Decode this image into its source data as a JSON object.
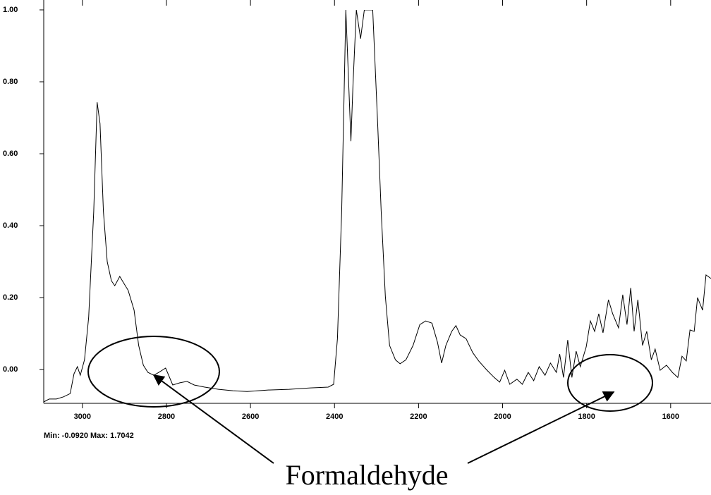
{
  "chart_data": {
    "type": "line",
    "x": [
      3092,
      3079,
      3062,
      3045,
      3029,
      3020,
      3012,
      3005,
      2995,
      2985,
      2973,
      2965,
      2958,
      2950,
      2941,
      2931,
      2923,
      2911,
      2903,
      2891,
      2877,
      2866,
      2855,
      2844,
      2830,
      2818,
      2802,
      2785,
      2768,
      2751,
      2734,
      2709,
      2676,
      2642,
      2608,
      2558,
      2508,
      2457,
      2415,
      2402,
      2393,
      2383,
      2373,
      2361,
      2356,
      2348,
      2338,
      2329,
      2309,
      2297,
      2289,
      2279,
      2269,
      2255,
      2244,
      2230,
      2213,
      2197,
      2183,
      2168,
      2155,
      2145,
      2135,
      2121,
      2111,
      2101,
      2087,
      2071,
      2057,
      2037,
      2020,
      2007,
      1995,
      1983,
      1966,
      1953,
      1939,
      1926,
      1913,
      1899,
      1886,
      1872,
      1864,
      1855,
      1845,
      1835,
      1825,
      1815,
      1801,
      1791,
      1781,
      1771,
      1761,
      1748,
      1738,
      1724,
      1714,
      1704,
      1695,
      1687,
      1678,
      1667,
      1657,
      1646,
      1637,
      1625,
      1610,
      1596,
      1583,
      1573,
      1563,
      1554,
      1544,
      1536,
      1524,
      1516,
      1504
    ],
    "values": [
      -0.09,
      -0.082,
      -0.082,
      -0.076,
      -0.067,
      -0.012,
      0.008,
      -0.016,
      0.027,
      0.145,
      0.44,
      0.743,
      0.684,
      0.44,
      0.3,
      0.247,
      0.233,
      0.259,
      0.243,
      0.22,
      0.165,
      0.067,
      0.012,
      -0.008,
      -0.016,
      -0.008,
      0.004,
      -0.043,
      -0.037,
      -0.033,
      -0.043,
      -0.049,
      -0.055,
      -0.059,
      -0.061,
      -0.057,
      -0.055,
      -0.051,
      -0.049,
      -0.041,
      0.086,
      0.44,
      1.0,
      0.635,
      0.79,
      1.0,
      0.92,
      1.0,
      1.0,
      0.675,
      0.44,
      0.204,
      0.067,
      0.027,
      0.016,
      0.027,
      0.067,
      0.125,
      0.135,
      0.129,
      0.076,
      0.018,
      0.067,
      0.106,
      0.122,
      0.096,
      0.086,
      0.047,
      0.024,
      -0.002,
      -0.022,
      -0.035,
      -0.002,
      -0.041,
      -0.027,
      -0.041,
      -0.008,
      -0.031,
      0.008,
      -0.016,
      0.018,
      -0.008,
      0.043,
      -0.022,
      0.082,
      -0.022,
      0.051,
      0.008,
      0.063,
      0.135,
      0.106,
      0.155,
      0.102,
      0.194,
      0.155,
      0.116,
      0.208,
      0.125,
      0.227,
      0.106,
      0.194,
      0.067,
      0.106,
      0.027,
      0.057,
      -0.002,
      0.012,
      -0.008,
      -0.022,
      0.037,
      0.024,
      0.11,
      0.106,
      0.2,
      0.165,
      0.263,
      0.253
    ],
    "color": "#000000",
    "xlim": [
      3092,
      1504
    ],
    "xticks": [
      3000,
      2800,
      2600,
      2400,
      2200,
      2000,
      1800,
      1600
    ],
    "ylim": [
      -0.094,
      1.0
    ],
    "yticks": [
      {
        "value": 0,
        "label": "0.00"
      },
      {
        "value": 0.2,
        "label": "0.20"
      },
      {
        "value": 0.4,
        "label": "0.40"
      },
      {
        "value": 0.6,
        "label": "0.60"
      },
      {
        "value": 0.8,
        "label": "0.80"
      },
      {
        "value": 1.0,
        "label": "1.00"
      }
    ],
    "grid": false,
    "annotations": [
      "Min: -0.0920  Max: 1.7042",
      "Formaldehyde"
    ]
  }
}
